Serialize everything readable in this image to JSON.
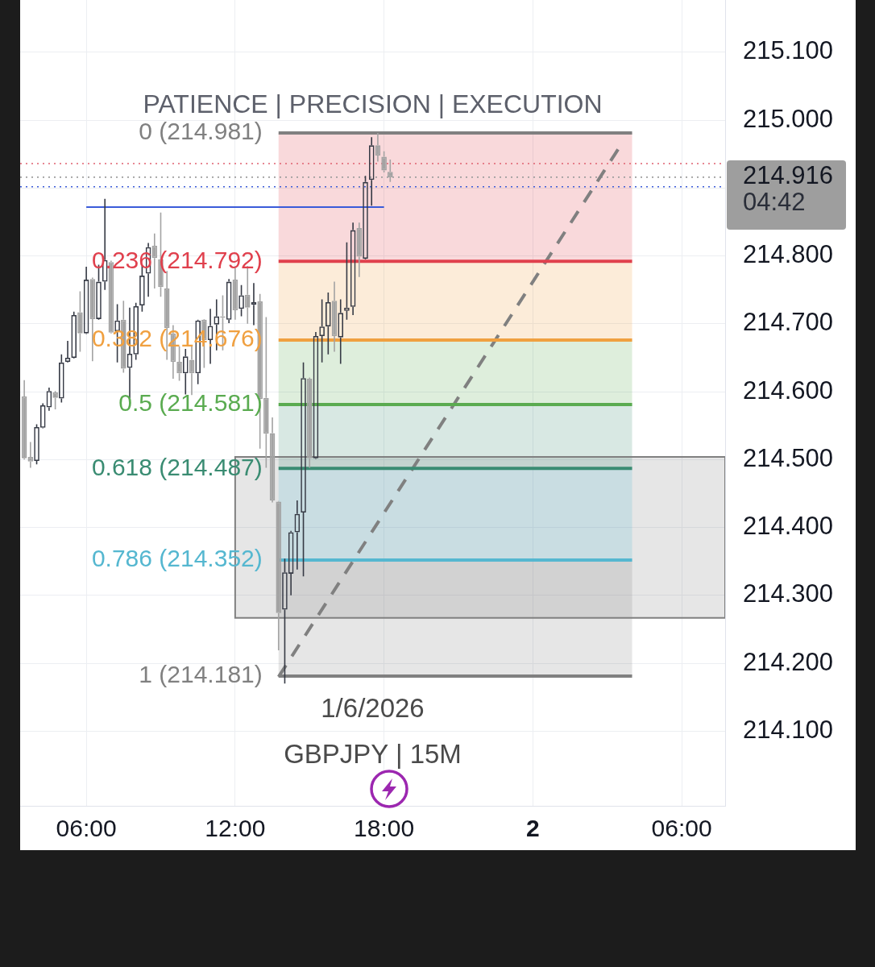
{
  "chart_data": {
    "type": "candlestick",
    "title": "PATIENCE | PRECISION | EXECUTION",
    "annotations": [
      "1/6/2026",
      "GBPJPY | 15M"
    ],
    "x": [
      "2026-06-01T03:30",
      "2026-06-01T03:45",
      "2026-06-01T04:00",
      "2026-06-01T04:15",
      "2026-06-01T04:30",
      "2026-06-01T04:45",
      "2026-06-01T05:00",
      "2026-06-01T05:15",
      "2026-06-01T05:30",
      "2026-06-01T05:45",
      "2026-06-01T06:00",
      "2026-06-01T06:15",
      "2026-06-01T06:30",
      "2026-06-01T06:45",
      "2026-06-01T07:00",
      "2026-06-01T07:15",
      "2026-06-01T07:30",
      "2026-06-01T07:45",
      "2026-06-01T08:00",
      "2026-06-01T08:15",
      "2026-06-01T08:30",
      "2026-06-01T08:45",
      "2026-06-01T09:00",
      "2026-06-01T09:15",
      "2026-06-01T09:30",
      "2026-06-01T09:45",
      "2026-06-01T10:00",
      "2026-06-01T10:15",
      "2026-06-01T10:30",
      "2026-06-01T10:45",
      "2026-06-01T11:00",
      "2026-06-01T11:15",
      "2026-06-01T11:30",
      "2026-06-01T11:45",
      "2026-06-01T12:00",
      "2026-06-01T12:15",
      "2026-06-01T12:30",
      "2026-06-01T12:45",
      "2026-06-01T13:00",
      "2026-06-01T13:15",
      "2026-06-01T13:30",
      "2026-06-01T13:45",
      "2026-06-01T14:00",
      "2026-06-01T14:15",
      "2026-06-01T14:30",
      "2026-06-01T14:45",
      "2026-06-01T15:00",
      "2026-06-01T15:15",
      "2026-06-01T15:30",
      "2026-06-01T15:45",
      "2026-06-01T16:00",
      "2026-06-01T16:15",
      "2026-06-01T16:30",
      "2026-06-01T16:45",
      "2026-06-01T17:00",
      "2026-06-01T17:15",
      "2026-06-01T17:30",
      "2026-06-01T17:45",
      "2026-06-01T18:00",
      "2026-06-01T18:15"
    ],
    "ohlc": [
      [
        214.593,
        214.617,
        214.5,
        214.502
      ],
      [
        214.504,
        214.526,
        214.488,
        214.497
      ],
      [
        214.498,
        214.552,
        214.493,
        214.548
      ],
      [
        214.547,
        214.583,
        214.546,
        214.58
      ],
      [
        214.577,
        214.606,
        214.572,
        214.601
      ],
      [
        214.599,
        214.601,
        214.574,
        214.591
      ],
      [
        214.59,
        214.655,
        214.584,
        214.643
      ],
      [
        214.644,
        214.675,
        214.643,
        214.65
      ],
      [
        214.65,
        214.718,
        214.649,
        214.713
      ],
      [
        214.717,
        214.748,
        214.659,
        214.686
      ],
      [
        214.686,
        214.784,
        214.685,
        214.765
      ],
      [
        214.766,
        214.768,
        214.645,
        214.707
      ],
      [
        214.707,
        214.787,
        214.706,
        214.762
      ],
      [
        214.762,
        214.884,
        214.75,
        214.794
      ],
      [
        214.791,
        214.793,
        214.686,
        214.687
      ],
      [
        214.689,
        214.729,
        214.643,
        214.705
      ],
      [
        214.706,
        214.734,
        214.628,
        214.634
      ],
      [
        214.635,
        214.724,
        214.589,
        214.656
      ],
      [
        214.655,
        214.731,
        214.647,
        214.726
      ],
      [
        214.727,
        214.787,
        214.718,
        214.771
      ],
      [
        214.774,
        214.819,
        214.74,
        214.813
      ],
      [
        214.815,
        214.833,
        214.752,
        214.797
      ],
      [
        214.795,
        214.864,
        214.74,
        214.754
      ],
      [
        214.752,
        214.778,
        214.647,
        214.694
      ],
      [
        214.686,
        214.698,
        214.619,
        214.644
      ],
      [
        214.644,
        214.667,
        214.616,
        214.627
      ],
      [
        214.627,
        214.663,
        214.596,
        214.652
      ],
      [
        214.647,
        214.668,
        214.595,
        214.627
      ],
      [
        214.627,
        214.706,
        214.611,
        214.705
      ],
      [
        214.706,
        214.707,
        214.635,
        214.676
      ],
      [
        214.676,
        214.722,
        214.641,
        214.697
      ],
      [
        214.699,
        214.736,
        214.661,
        214.711
      ],
      [
        214.711,
        214.742,
        214.661,
        214.709
      ],
      [
        214.706,
        214.766,
        214.701,
        214.762
      ],
      [
        214.765,
        214.785,
        214.706,
        214.72
      ],
      [
        214.722,
        214.757,
        214.711,
        214.742
      ],
      [
        214.743,
        214.785,
        214.7,
        214.724
      ],
      [
        214.728,
        214.76,
        214.698,
        214.732
      ],
      [
        214.733,
        214.744,
        214.516,
        214.589
      ],
      [
        214.591,
        214.71,
        214.488,
        214.538
      ],
      [
        214.539,
        214.562,
        214.437,
        214.44
      ],
      [
        214.438,
        214.439,
        214.219,
        214.274
      ],
      [
        214.279,
        214.354,
        214.17,
        214.334
      ],
      [
        214.332,
        214.395,
        214.3,
        214.393
      ],
      [
        214.393,
        214.44,
        214.338,
        214.42
      ],
      [
        214.422,
        214.643,
        214.328,
        214.62
      ],
      [
        214.619,
        214.621,
        214.488,
        214.502
      ],
      [
        214.502,
        214.688,
        214.501,
        214.682
      ],
      [
        214.682,
        214.736,
        214.643,
        214.696
      ],
      [
        214.696,
        214.746,
        214.655,
        214.732
      ],
      [
        214.734,
        214.762,
        214.659,
        214.682
      ],
      [
        214.68,
        214.736,
        214.641,
        214.716
      ],
      [
        214.719,
        214.82,
        214.706,
        214.724
      ],
      [
        214.725,
        214.849,
        214.713,
        214.838
      ],
      [
        214.841,
        214.849,
        214.769,
        214.799
      ],
      [
        214.796,
        214.918,
        214.795,
        214.909
      ],
      [
        214.912,
        214.975,
        214.874,
        214.963
      ],
      [
        214.963,
        214.981,
        214.939,
        214.948
      ],
      [
        214.946,
        214.954,
        214.923,
        214.926
      ],
      [
        214.924,
        214.942,
        214.909,
        214.916
      ]
    ],
    "colors": [
      "#a3a3a3",
      "#a3a3a3",
      "#363a45",
      "#363a45",
      "#363a45",
      "#a3a3a3",
      "#363a45",
      "#363a45",
      "#363a45",
      "#a3a3a3",
      "#363a45",
      "#a3a3a3",
      "#363a45",
      "#363a45",
      "#a3a3a3",
      "#363a45",
      "#a3a3a3",
      "#363a45",
      "#363a45",
      "#363a45",
      "#363a45",
      "#a3a3a3",
      "#a3a3a3",
      "#a3a3a3",
      "#a3a3a3",
      "#a3a3a3",
      "#363a45",
      "#a3a3a3",
      "#363a45",
      "#a3a3a3",
      "#363a45",
      "#363a45",
      "#a3a3a3",
      "#363a45",
      "#a3a3a3",
      "#363a45",
      "#a3a3a3",
      "#363a45",
      "#a3a3a3",
      "#a3a3a3",
      "#a3a3a3",
      "#a3a3a3",
      "#363a45",
      "#363a45",
      "#363a45",
      "#363a45",
      "#a3a3a3",
      "#363a45",
      "#363a45",
      "#363a45",
      "#a3a3a3",
      "#363a45",
      "#363a45",
      "#363a45",
      "#a3a3a3",
      "#363a45",
      "#363a45",
      "#a3a3a3",
      "#a3a3a3",
      "#a3a3a3"
    ],
    "series": [
      {
        "type": "line",
        "x": [
          "2026-06-01T12:00",
          "2026-06-02T07:45"
        ],
        "values": [
          214.504,
          214.504
        ],
        "lower": [
          214.267,
          214.267
        ],
        "upper": [
          214.504,
          214.504
        ],
        "color": "#808080"
      },
      {
        "type": "line",
        "name": "0 (214.981)",
        "x": [
          "2026-06-01T13:45",
          "2026-06-02T04:00"
        ],
        "values": [
          214.981,
          214.981
        ],
        "color": "#808080"
      },
      {
        "type": "line",
        "name": "0.236 (214.792)",
        "x": [
          "2026-06-01T13:45",
          "2026-06-02T04:00"
        ],
        "values": [
          214.792,
          214.792
        ],
        "lower": [
          214.792,
          214.792
        ],
        "upper": [
          214.981,
          214.981
        ],
        "color": "#e0404d"
      },
      {
        "type": "line",
        "name": "0.382 (214.676)",
        "x": [
          "2026-06-01T13:45",
          "2026-06-02T04:00"
        ],
        "values": [
          214.676,
          214.676
        ],
        "lower": [
          214.676,
          214.676
        ],
        "upper": [
          214.792,
          214.792
        ],
        "color": "#f0a040"
      },
      {
        "type": "line",
        "name": "0.5 (214.581)",
        "x": [
          "2026-06-01T13:45",
          "2026-06-02T04:00"
        ],
        "values": [
          214.581,
          214.581
        ],
        "lower": [
          214.581,
          214.581
        ],
        "upper": [
          214.676,
          214.676
        ],
        "color": "#5aab50"
      },
      {
        "type": "line",
        "name": "0.618 (214.487)",
        "x": [
          "2026-06-01T13:45",
          "2026-06-02T04:00"
        ],
        "values": [
          214.487,
          214.487
        ],
        "lower": [
          214.487,
          214.487
        ],
        "upper": [
          214.581,
          214.581
        ],
        "color": "#3a8c72"
      },
      {
        "type": "line",
        "name": "0.786 (214.352)",
        "x": [
          "2026-06-01T13:45",
          "2026-06-02T04:00"
        ],
        "values": [
          214.352,
          214.352
        ],
        "lower": [
          214.352,
          214.352
        ],
        "upper": [
          214.487,
          214.487
        ],
        "color": "#55b7d0"
      },
      {
        "type": "line",
        "name": "1 (214.181)",
        "x": [
          "2026-06-01T13:45",
          "2026-06-02T04:00"
        ],
        "values": [
          214.181,
          214.181
        ],
        "lower": [
          214.181,
          214.181
        ],
        "upper": [
          214.352,
          214.352
        ],
        "color": "#808080"
      },
      {
        "type": "line",
        "x": [
          "2026-06-01T06:00",
          "2026-06-01T18:00"
        ],
        "values": [
          214.872,
          214.872
        ],
        "color": "#3a5bd9"
      },
      {
        "type": "line",
        "x": [
          "2026-06-01T13:45",
          "2026-06-02T03:26"
        ],
        "values": [
          214.18,
          214.957
        ],
        "color": "#808080",
        "line_style": "dashed"
      }
    ],
    "ref_lines": [
      {
        "axis": "y",
        "value": 214.936,
        "color": "#e06070",
        "line_style": "dotted"
      },
      {
        "axis": "y",
        "value": 214.916,
        "label": "214.916\n04:42",
        "color": "#9e9e9e",
        "line_style": "dotted"
      },
      {
        "axis": "y",
        "value": 214.902,
        "color": "#3a5bd9",
        "line_style": "dotted"
      }
    ],
    "xlim": [
      "2026-06-01T03:20",
      "2026-06-02T07:45"
    ],
    "xticks": [
      {
        "value": "2026-06-01T06:00",
        "label": "06:00"
      },
      {
        "value": "2026-06-01T12:00",
        "label": "12:00"
      },
      {
        "value": "2026-06-01T18:00",
        "label": "18:00"
      },
      {
        "value": "2026-06-02T00:00",
        "label": "2"
      },
      {
        "value": "2026-06-02T06:00",
        "label": "06:00"
      }
    ],
    "ylim": [
      213.99,
      215.177
    ],
    "yticks": [
      {
        "value": 214.1,
        "label": "214.100"
      },
      {
        "value": 214.2,
        "label": "214.200"
      },
      {
        "value": 214.3,
        "label": "214.300"
      },
      {
        "value": 214.4,
        "label": "214.400"
      },
      {
        "value": 214.5,
        "label": "214.500"
      },
      {
        "value": 214.6,
        "label": "214.600"
      },
      {
        "value": 214.7,
        "label": "214.700"
      },
      {
        "value": 214.8,
        "label": "214.800"
      },
      {
        "value": 214.9,
        "label": null
      },
      {
        "value": 215,
        "label": "215.000"
      },
      {
        "value": 215.1,
        "label": "215.100"
      }
    ],
    "grid": true
  }
}
